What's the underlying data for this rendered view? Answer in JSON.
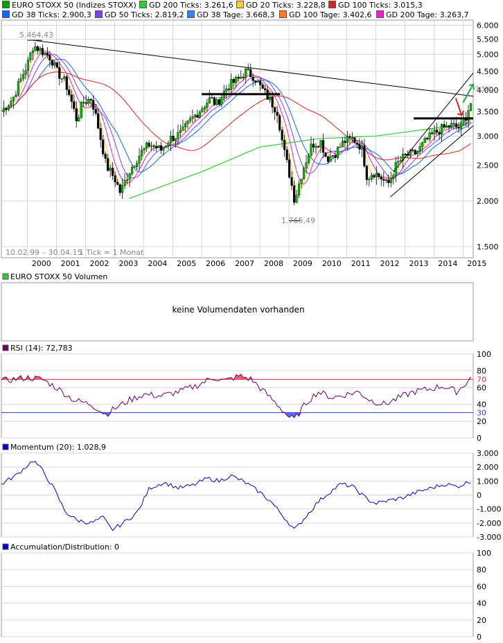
{
  "legend_main": [
    {
      "label": "EURO STOXX 50 (Indizes STOXX)",
      "color": "#00a000"
    },
    {
      "label": "GD 200 Ticks: 3.261,6",
      "color": "#33cc33"
    },
    {
      "label": "GD 20 Ticks: 3.228,8",
      "color": "#ffcc33"
    },
    {
      "label": "GD 100 Ticks: 3.015,3",
      "color": "#dd2222"
    },
    {
      "label": "GD 38 Ticks: 2.900,3",
      "color": "#1166ff"
    },
    {
      "label": "GD 50 Ticks: 2.819,2",
      "color": "#7744ee"
    },
    {
      "label": "GD 38 Tage: 3.668,3",
      "color": "#2288ff"
    },
    {
      "label": "GD 100 Tage: 3.402,6",
      "color": "#ff7722"
    },
    {
      "label": "GD 200 Tage: 3.263,7",
      "color": "#ee22cc"
    }
  ],
  "main_chart": {
    "date_range_text": "10.02.99 – 30.04.15",
    "tick_text": "1 Tick = 1 Monat",
    "annotation_high": "5.464,43",
    "annotation_low": "1.765,49",
    "x_labels": [
      "2000",
      "2001",
      "2002",
      "2003",
      "2004",
      "2005",
      "2006",
      "2007",
      "2008",
      "2009",
      "2010",
      "2011",
      "2012",
      "2013",
      "2014",
      "2015"
    ],
    "y_labels": [
      "6.000",
      "5.500",
      "5.000",
      "4.500",
      "4.000",
      "3.500",
      "3.000",
      "2.500",
      "2.000",
      "1.500"
    ],
    "hidden_label": "3.500"
  },
  "volume_panel": {
    "title": "EURO STOXX 50 Volumen",
    "message": "keine Volumendaten vorhanden"
  },
  "rsi_panel": {
    "title": "RSI (14): 72,783",
    "y_labels": [
      "100",
      "80",
      "70",
      "60",
      "40",
      "30",
      "20",
      "0"
    ]
  },
  "momentum_panel": {
    "title": "Momentum (20): 1.028,9",
    "y_labels": [
      "3.000",
      "2.000",
      "1.000",
      "0",
      "-1.000",
      "-2.000",
      "-3.000"
    ]
  },
  "ad_panel": {
    "title": "Accumulation/Distribution: 0",
    "y_labels": [
      "100",
      "80",
      "60",
      "40",
      "20",
      "0"
    ]
  },
  "colors": {
    "price_up": "#00c000",
    "price_down": "#000000",
    "trendline": "#000000",
    "rsi_line": "#660066",
    "rsi_upper": "#ee3344",
    "rsi_lower": "#3344ee",
    "momentum": "#0000cc",
    "arrow_green": "#22aa44",
    "arrow_red": "#dd2222"
  },
  "chart_data": [
    {
      "type": "line",
      "title": "EURO STOXX 50 (Indizes STOXX)",
      "scale": "log",
      "ylim": [
        1400,
        6200
      ],
      "x": [
        1999.1,
        1999.5,
        2000.0,
        2000.2,
        2000.5,
        2000.8,
        2001.0,
        2001.3,
        2001.7,
        2001.9,
        2002.2,
        2002.5,
        2002.7,
        2003.0,
        2003.2,
        2003.5,
        2003.9,
        2004.2,
        2004.6,
        2004.9,
        2005.3,
        2005.6,
        2005.9,
        2006.3,
        2006.5,
        2006.9,
        2007.3,
        2007.5,
        2007.8,
        2008.0,
        2008.3,
        2008.6,
        2008.8,
        2009.0,
        2009.2,
        2009.5,
        2009.8,
        2010.1,
        2010.3,
        2010.6,
        2010.9,
        2011.2,
        2011.5,
        2011.7,
        2011.9,
        2012.2,
        2012.4,
        2012.7,
        2013.0,
        2013.4,
        2013.7,
        2014.0,
        2014.3,
        2014.6,
        2014.9,
        2015.1,
        2015.3
      ],
      "values": [
        3500,
        3800,
        4700,
        5300,
        5100,
        4900,
        4500,
        4200,
        3300,
        3700,
        3800,
        3000,
        2500,
        2300,
        2100,
        2400,
        2700,
        2850,
        2750,
        2950,
        3050,
        3300,
        3500,
        3800,
        3650,
        4100,
        4300,
        4500,
        4350,
        4100,
        3800,
        3500,
        2800,
        2400,
        2000,
        2450,
        2850,
        2900,
        2600,
        2700,
        2900,
        2950,
        2800,
        2300,
        2400,
        2300,
        2200,
        2500,
        2650,
        2700,
        2900,
        3050,
        3150,
        3200,
        3150,
        3400,
        3750
      ],
      "series_moving_averages": [
        {
          "name": "GD 200 Ticks",
          "last": 3261.6
        },
        {
          "name": "GD 20 Ticks",
          "last": 3228.8
        },
        {
          "name": "GD 100 Ticks",
          "last": 3015.3
        },
        {
          "name": "GD 38 Ticks",
          "last": 2900.3
        },
        {
          "name": "GD 50 Ticks",
          "last": 2819.2
        },
        {
          "name": "GD 38 Tage",
          "last": 3668.3
        },
        {
          "name": "GD 100 Tage",
          "last": 3402.6
        },
        {
          "name": "GD 200 Tage",
          "last": 3263.7
        }
      ],
      "annotations": [
        {
          "label": "5.464,43",
          "x": 2000.2,
          "y": 5464.43
        },
        {
          "label": "1.765,49",
          "x": 2009.2,
          "y": 1765.49
        }
      ],
      "xlabel": "",
      "ylabel": ""
    },
    {
      "type": "line",
      "title": "RSI (14)",
      "ylim": [
        0,
        100
      ],
      "reference_lines": [
        30,
        70
      ],
      "x": [
        1999.1,
        2000.0,
        2000.5,
        2001.0,
        2001.6,
        2002.2,
        2002.7,
        2003.0,
        2003.5,
        2004.0,
        2004.6,
        2005.2,
        2005.8,
        2006.4,
        2006.8,
        2007.3,
        2007.7,
        2008.0,
        2008.6,
        2009.0,
        2009.2,
        2009.6,
        2010.0,
        2010.5,
        2011.0,
        2011.4,
        2011.8,
        2012.3,
        2012.8,
        2013.3,
        2013.8,
        2014.3,
        2014.8,
        2015.3
      ],
      "values": [
        68,
        72,
        70,
        60,
        45,
        40,
        28,
        35,
        45,
        52,
        50,
        55,
        62,
        72,
        68,
        74,
        70,
        60,
        40,
        25,
        22,
        42,
        55,
        48,
        52,
        55,
        45,
        40,
        48,
        55,
        58,
        62,
        55,
        72.783
      ]
    },
    {
      "type": "line",
      "title": "Momentum (20)",
      "ylim": [
        -3000,
        3000
      ],
      "x": [
        1999.1,
        1999.6,
        2000.2,
        2000.5,
        2000.9,
        2001.3,
        2001.7,
        2002.2,
        2002.6,
        2002.9,
        2003.3,
        2003.8,
        2004.2,
        2004.7,
        2005.2,
        2005.7,
        2006.2,
        2006.6,
        2007.0,
        2007.5,
        2008.0,
        2008.4,
        2008.8,
        2009.2,
        2009.6,
        2010.0,
        2010.4,
        2010.8,
        2011.2,
        2011.7,
        2012.0,
        2012.4,
        2012.9,
        2013.4,
        2013.9,
        2014.4,
        2014.8,
        2015.3
      ],
      "values": [
        800,
        1400,
        2500,
        1800,
        500,
        -1200,
        -1800,
        -2000,
        -1600,
        -2500,
        -2000,
        -1200,
        500,
        900,
        500,
        700,
        1200,
        1000,
        1400,
        900,
        200,
        -500,
        -1500,
        -2500,
        -1500,
        -500,
        200,
        800,
        600,
        -300,
        -600,
        -400,
        -200,
        200,
        500,
        800,
        600,
        1028.9
      ]
    },
    {
      "type": "line",
      "title": "Accumulation/Distribution",
      "ylim": [
        0,
        100
      ],
      "x": [],
      "values": []
    }
  ]
}
